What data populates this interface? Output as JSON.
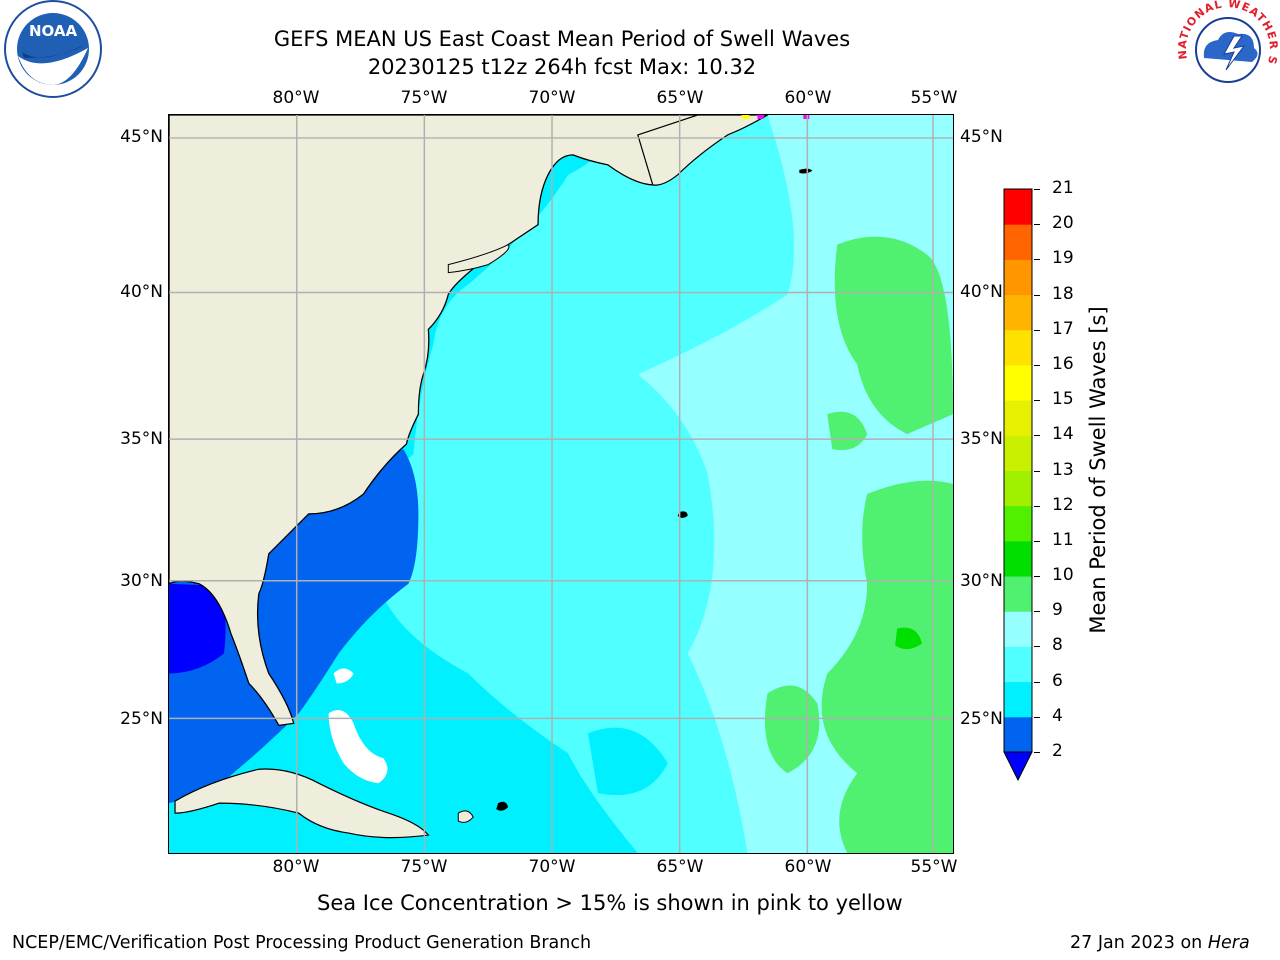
{
  "header": {
    "title_line1": "GEFS MEAN US East Coast Mean Period of Swell Waves",
    "title_line2": "20230125 t12z 264h fcst   Max: 10.32"
  },
  "logos": {
    "left": "noaa-logo",
    "right": "national-weather-service-logo",
    "left_text": "NOAA",
    "right_text": "NATIONAL WEATHER SERVICE"
  },
  "map": {
    "lon_ticks": [
      "80°W",
      "75°W",
      "70°W",
      "65°W",
      "60°W",
      "55°W"
    ],
    "lat_ticks": [
      "45°N",
      "40°N",
      "35°N",
      "30°N",
      "25°N"
    ],
    "land_color": "#efeedd",
    "grid_color": "#b0b0b0"
  },
  "colorbar": {
    "label": "Mean Period of Swell Waves [s]",
    "ticks": [
      "2",
      "4",
      "6",
      "8",
      "9",
      "10",
      "11",
      "12",
      "13",
      "14",
      "15",
      "16",
      "17",
      "18",
      "19",
      "20",
      "21"
    ],
    "colors": [
      "#0064f0",
      "#00c8ff",
      "#00f0ff",
      "#50ffff",
      "#96ffff",
      "#50f070",
      "#00e000",
      "#50f000",
      "#a0f000",
      "#c8f000",
      "#e6f000",
      "#ffff00",
      "#ffe100",
      "#ffb400",
      "#ff9600",
      "#ff6400",
      "#ff3200",
      "#ff0000"
    ],
    "extend_color": "#0000ff"
  },
  "footer": {
    "note": "Sea Ice Concentration > 15% is shown in pink to yellow",
    "left": "NCEP/EMC/Verification Post Processing Product Generation Branch",
    "right_date": "27 Jan 2023 on ",
    "right_host": "Hera"
  }
}
